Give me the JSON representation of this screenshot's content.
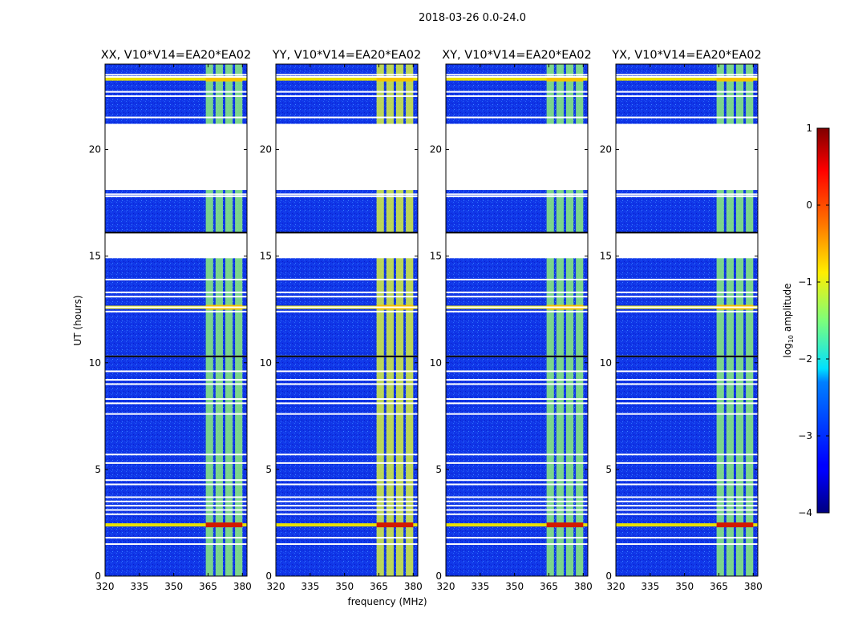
{
  "figure": {
    "title": "2018-03-26 0.0-24.0"
  },
  "chart_data": {
    "type": "heatmap",
    "title": "2018-03-26 0.0-24.0",
    "xlabel": "frequency (MHz)",
    "ylabel": "UT (hours)",
    "xlim": [
      320,
      382
    ],
    "ylim": [
      0,
      24
    ],
    "xticks": [
      320,
      335,
      350,
      365,
      380
    ],
    "yticks": [
      0,
      5,
      10,
      15,
      20
    ],
    "panels": [
      {
        "title": "XX, V10*V14=EA20*EA02",
        "pol": "XX"
      },
      {
        "title": "YY, V10*V14=EA20*EA02",
        "pol": "YY"
      },
      {
        "title": "XY, V10*V14=EA20*EA02",
        "pol": "XY"
      },
      {
        "title": "YX, V10*V14=EA20*EA02",
        "pol": "YX"
      }
    ],
    "data_gaps_hours": [
      [
        21.2,
        18.1
      ],
      [
        16.1,
        14.9
      ]
    ],
    "flagged_lines_hours": [
      23.5,
      23.4,
      22.7,
      22.5,
      21.5,
      17.9,
      17.8,
      13.9,
      13.3,
      13.1,
      12.6,
      12.4,
      10.3,
      9.6,
      9.2,
      9.0,
      8.3,
      8.1,
      7.6,
      5.7,
      5.3,
      4.5,
      4.3,
      3.7,
      3.5,
      3.3,
      3.1,
      2.9,
      1.8,
      1.5
    ],
    "rfi_band_mhz": [
      364,
      380
    ],
    "strong_rfi_hours": [
      2.4,
      12.6,
      23.3
    ],
    "colorbar": {
      "label": "log10 amplitude",
      "min": -4,
      "max": 1,
      "ticks": [
        1,
        0,
        -1,
        -2,
        -3,
        -4
      ],
      "colormap": "jet"
    }
  }
}
